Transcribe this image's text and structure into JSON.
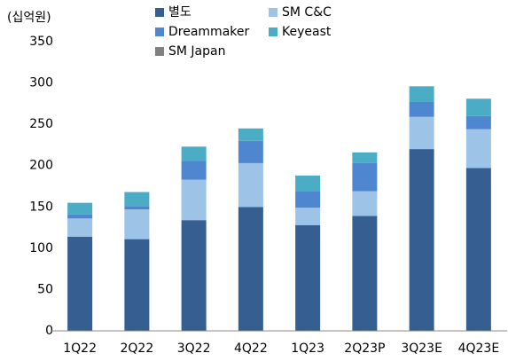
{
  "chart_data": {
    "type": "stacked_bar",
    "y_label": "(십억원)",
    "categories": [
      "1Q22",
      "2Q22",
      "3Q22",
      "4Q22",
      "1Q23",
      "2Q23P",
      "3Q23E",
      "4Q23E"
    ],
    "series": [
      {
        "name": "별도",
        "color": "#365f91",
        "values": [
          114,
          111,
          134,
          150,
          128,
          139,
          220,
          197
        ]
      },
      {
        "name": "SM C&C",
        "color": "#9dc3e6",
        "values": [
          22,
          36,
          49,
          53,
          21,
          30,
          39,
          47
        ]
      },
      {
        "name": "Dreammaker",
        "color": "#4f86d0",
        "values": [
          5,
          4,
          23,
          27,
          20,
          34,
          18,
          16
        ]
      },
      {
        "name": "Keyeast",
        "color": "#4bacc6",
        "values": [
          14,
          17,
          17,
          15,
          19,
          13,
          19,
          21
        ]
      },
      {
        "name": "SM Japan",
        "color": "#808080",
        "values": [
          0,
          0,
          0,
          0,
          0,
          0,
          0,
          0
        ]
      }
    ],
    "ylim": [
      0,
      350
    ],
    "yticks": [
      0,
      50,
      100,
      150,
      200,
      250,
      300,
      350
    ],
    "grid": false
  }
}
